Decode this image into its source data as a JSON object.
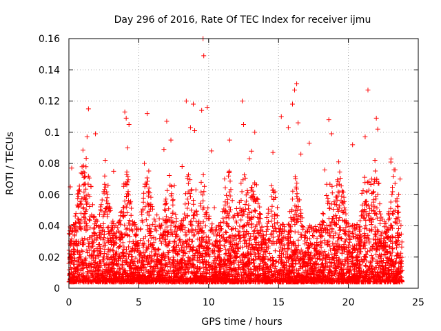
{
  "chart_data": {
    "type": "scatter",
    "title": "Day 296 of 2016, Rate Of TEC Index for receiver ijmu",
    "xlabel": "GPS time / hours",
    "ylabel": "ROTI / TECUs",
    "xlim": [
      0,
      25
    ],
    "ylim": [
      0,
      0.16
    ],
    "xticks": [
      0,
      5,
      10,
      15,
      20,
      25
    ],
    "xtick_labels": [
      "0",
      "5",
      "10",
      "15",
      "20",
      "25"
    ],
    "yticks": [
      0,
      0.02,
      0.04,
      0.06,
      0.08,
      0.1,
      0.12,
      0.14,
      0.16
    ],
    "ytick_labels": [
      "0",
      "0.02",
      "0.04",
      "0.06",
      "0.08",
      "0.1",
      "0.12",
      "0.14",
      "0.16"
    ],
    "grid": true,
    "marker": "+",
    "color": "#ff0000",
    "series": [
      {
        "name": "ROTI",
        "points": [
          [
            9.6,
            0.16
          ],
          [
            9.65,
            0.149
          ],
          [
            16.3,
            0.131
          ],
          [
            16.15,
            0.127
          ],
          [
            21.4,
            0.127
          ],
          [
            8.4,
            0.12
          ],
          [
            12.4,
            0.12
          ],
          [
            8.9,
            0.118
          ],
          [
            16.0,
            0.118
          ],
          [
            9.9,
            0.116
          ],
          [
            1.4,
            0.115
          ],
          [
            9.5,
            0.114
          ],
          [
            4.0,
            0.113
          ],
          [
            5.6,
            0.112
          ],
          [
            15.2,
            0.11
          ],
          [
            4.1,
            0.109
          ],
          [
            22.0,
            0.109
          ],
          [
            7.0,
            0.107
          ],
          [
            16.4,
            0.106
          ],
          [
            4.3,
            0.105
          ],
          [
            12.5,
            0.105
          ],
          [
            18.6,
            0.108
          ],
          [
            8.7,
            0.103
          ],
          [
            15.7,
            0.103
          ],
          [
            22.1,
            0.102
          ],
          [
            9.0,
            0.101
          ],
          [
            13.3,
            0.1
          ],
          [
            1.9,
            0.099
          ],
          [
            18.8,
            0.099
          ],
          [
            21.2,
            0.097
          ],
          [
            1.3,
            0.097
          ],
          [
            7.3,
            0.095
          ],
          [
            11.5,
            0.095
          ],
          [
            17.2,
            0.093
          ],
          [
            20.3,
            0.092
          ],
          [
            4.2,
            0.09
          ],
          [
            6.8,
            0.089
          ],
          [
            10.2,
            0.088
          ],
          [
            14.6,
            0.087
          ],
          [
            16.6,
            0.086
          ],
          [
            2.6,
            0.082
          ],
          [
            19.3,
            0.081
          ],
          [
            21.9,
            0.082
          ],
          [
            5.4,
            0.08
          ],
          [
            8.1,
            0.078
          ],
          [
            0.2,
            0.077
          ],
          [
            23.7,
            0.07
          ],
          [
            0.1,
            0.065
          ],
          [
            23.6,
            0.06
          ],
          [
            3.2,
            0.075
          ]
        ]
      }
    ]
  }
}
